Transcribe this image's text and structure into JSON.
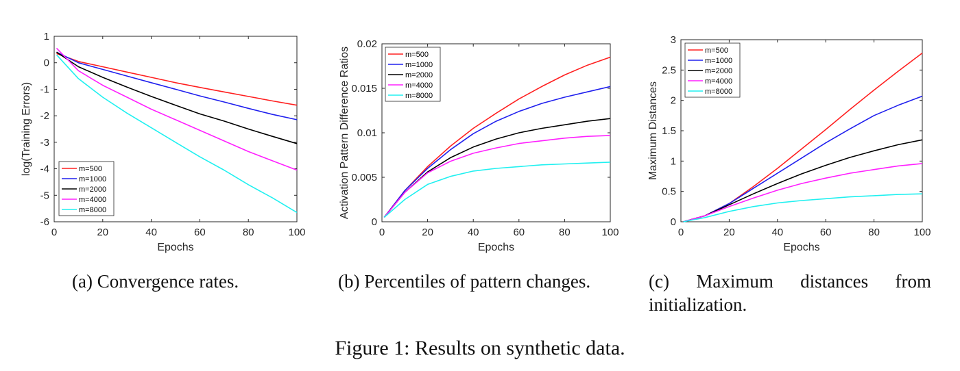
{
  "figure_caption": "Figure 1: Results on synthetic data.",
  "colors": {
    "m=500": "#ff2020",
    "m=1000": "#2020ee",
    "m=2000": "#000000",
    "m=4000": "#ff20ff",
    "m=8000": "#20f0f0"
  },
  "chart_data": [
    {
      "type": "line",
      "caption": "(a) Convergence rates.",
      "xlabel": "Epochs",
      "ylabel": "log(Training Errors)",
      "xlim": [
        0,
        100
      ],
      "ylim": [
        -6,
        1
      ],
      "xticks": [
        "0",
        "20",
        "40",
        "60",
        "80",
        "100"
      ],
      "yticks": [
        "1",
        "0",
        "-1",
        "-2",
        "-3",
        "-4",
        "-5",
        "-6"
      ],
      "legend_position": "bottom-left",
      "x": [
        1,
        10,
        20,
        30,
        40,
        50,
        60,
        70,
        80,
        90,
        100
      ],
      "series": [
        {
          "name": "m=500",
          "color": "#ff2020",
          "values": [
            0.35,
            0.05,
            -0.15,
            -0.35,
            -0.55,
            -0.75,
            -0.93,
            -1.1,
            -1.27,
            -1.44,
            -1.6
          ]
        },
        {
          "name": "m=1000",
          "color": "#2020ee",
          "values": [
            0.4,
            0.0,
            -0.25,
            -0.5,
            -0.75,
            -1.0,
            -1.25,
            -1.48,
            -1.72,
            -1.95,
            -2.15
          ]
        },
        {
          "name": "m=2000",
          "color": "#000000",
          "values": [
            0.4,
            -0.15,
            -0.55,
            -0.92,
            -1.27,
            -1.6,
            -1.93,
            -2.2,
            -2.5,
            -2.78,
            -3.05
          ]
        },
        {
          "name": "m=4000",
          "color": "#ff20ff",
          "values": [
            0.55,
            -0.3,
            -0.85,
            -1.3,
            -1.75,
            -2.15,
            -2.55,
            -2.95,
            -3.35,
            -3.7,
            -4.05
          ]
        },
        {
          "name": "m=8000",
          "color": "#20f0f0",
          "values": [
            0.3,
            -0.6,
            -1.3,
            -1.9,
            -2.45,
            -3.0,
            -3.55,
            -4.05,
            -4.6,
            -5.1,
            -5.65
          ]
        }
      ]
    },
    {
      "type": "line",
      "caption": "(b) Percentiles of pattern changes.",
      "xlabel": "Epochs",
      "ylabel": "Activation Pattern Difference Ratios",
      "xlim": [
        0,
        100
      ],
      "ylim": [
        0,
        0.02
      ],
      "xticks": [
        "0",
        "20",
        "40",
        "60",
        "80",
        "100"
      ],
      "yticks": [
        "0.02",
        "0.015",
        "0.01",
        "0.005",
        "0"
      ],
      "legend_position": "top-left",
      "x": [
        1,
        10,
        20,
        30,
        40,
        50,
        60,
        70,
        80,
        90,
        100
      ],
      "series": [
        {
          "name": "m=500",
          "color": "#ff2020",
          "values": [
            0.0005,
            0.0035,
            0.0062,
            0.0085,
            0.0105,
            0.0122,
            0.0138,
            0.0152,
            0.0165,
            0.0176,
            0.0185
          ]
        },
        {
          "name": "m=1000",
          "color": "#2020ee",
          "values": [
            0.0005,
            0.0035,
            0.006,
            0.0081,
            0.0099,
            0.0113,
            0.0124,
            0.0133,
            0.014,
            0.0146,
            0.0152
          ]
        },
        {
          "name": "m=2000",
          "color": "#000000",
          "values": [
            0.0005,
            0.0033,
            0.0056,
            0.0072,
            0.0084,
            0.0093,
            0.01,
            0.0105,
            0.0109,
            0.0113,
            0.0116
          ]
        },
        {
          "name": "m=4000",
          "color": "#ff20ff",
          "values": [
            0.0005,
            0.0033,
            0.0055,
            0.0068,
            0.0077,
            0.0083,
            0.0088,
            0.0091,
            0.0094,
            0.0096,
            0.0097
          ]
        },
        {
          "name": "m=8000",
          "color": "#20f0f0",
          "values": [
            0.0005,
            0.0025,
            0.0042,
            0.0051,
            0.0057,
            0.006,
            0.0062,
            0.0064,
            0.0065,
            0.0066,
            0.0067
          ]
        }
      ]
    },
    {
      "type": "line",
      "caption": "(c) Maximum distances from initialization.",
      "xlabel": "Epochs",
      "ylabel": "Maximum Distances",
      "xlim": [
        0,
        100
      ],
      "ylim": [
        0,
        3
      ],
      "xticks": [
        "0",
        "20",
        "40",
        "60",
        "80",
        "100"
      ],
      "yticks": [
        "3",
        "2.5",
        "2",
        "1.5",
        "1",
        "0.5",
        "0"
      ],
      "legend_position": "top-left",
      "x": [
        1,
        10,
        20,
        30,
        40,
        50,
        60,
        70,
        80,
        90,
        100
      ],
      "series": [
        {
          "name": "m=500",
          "color": "#ff2020",
          "values": [
            0.0,
            0.1,
            0.3,
            0.58,
            0.88,
            1.2,
            1.52,
            1.85,
            2.17,
            2.48,
            2.78
          ]
        },
        {
          "name": "m=1000",
          "color": "#2020ee",
          "values": [
            0.0,
            0.1,
            0.3,
            0.55,
            0.8,
            1.05,
            1.3,
            1.53,
            1.75,
            1.92,
            2.07
          ]
        },
        {
          "name": "m=2000",
          "color": "#000000",
          "values": [
            0.0,
            0.1,
            0.28,
            0.46,
            0.63,
            0.79,
            0.93,
            1.06,
            1.17,
            1.27,
            1.35
          ]
        },
        {
          "name": "m=4000",
          "color": "#ff20ff",
          "values": [
            0.0,
            0.1,
            0.25,
            0.39,
            0.52,
            0.63,
            0.72,
            0.8,
            0.86,
            0.92,
            0.96
          ]
        },
        {
          "name": "m=8000",
          "color": "#20f0f0",
          "values": [
            0.0,
            0.07,
            0.17,
            0.25,
            0.31,
            0.35,
            0.38,
            0.41,
            0.43,
            0.45,
            0.46
          ]
        }
      ]
    }
  ]
}
